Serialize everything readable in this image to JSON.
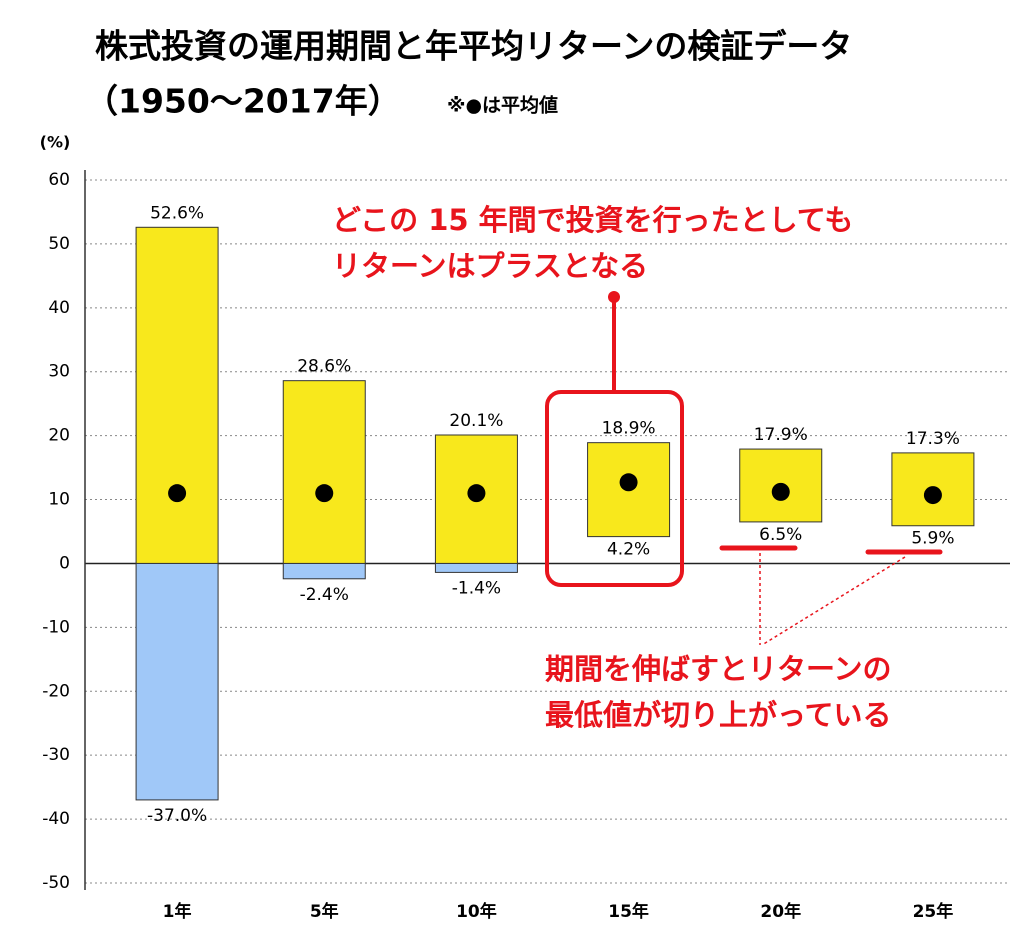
{
  "chart_data": {
    "type": "range_bar",
    "title": "株式投資の運用期間と年平均リターンの検証データ",
    "subtitle": "（1950〜2017年）",
    "note": "※●は平均値",
    "y_label": "(%)",
    "categories": [
      "1年",
      "5年",
      "10年",
      "15年",
      "20年",
      "25年"
    ],
    "series": [
      {
        "color": "#f8e81c",
        "values": [
          52.6,
          28.6,
          20.1,
          18.9,
          17.9,
          17.3
        ],
        "value_labels": [
          "52.6%",
          "28.6%",
          "20.1%",
          "18.9%",
          "17.9%",
          "17.3%"
        ]
      },
      {
        "color": "#a0c8f8",
        "values": [
          -37.0,
          -2.4,
          -1.4,
          4.2,
          6.5,
          5.9
        ],
        "value_labels": [
          "-37.0%",
          "-2.4%",
          "-1.4%",
          "4.2%",
          "6.5%",
          "5.9%"
        ]
      },
      {
        "color": "#000000",
        "values": [
          11.0,
          11.0,
          11.0,
          12.7,
          11.2,
          10.7
        ]
      }
    ],
    "ylim": [
      -50,
      60
    ],
    "yticks": [
      -50,
      -40,
      -30,
      -20,
      -10,
      0,
      10,
      20,
      30,
      40,
      50,
      60
    ],
    "grid": true,
    "annotations": [
      "どこの 15 年間で投資を行ったとしても",
      "リターンはプラスとなる",
      "期間を伸ばすとリターンの",
      "最低値が切り上がっている"
    ]
  }
}
